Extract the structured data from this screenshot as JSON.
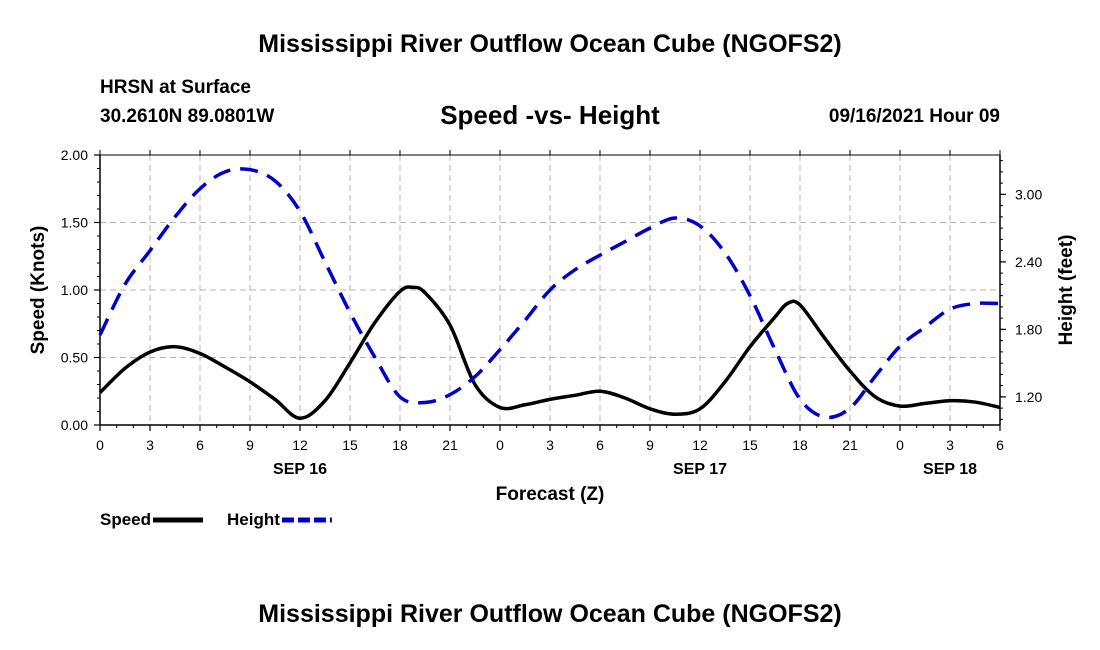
{
  "page": {
    "title_top": "Mississippi River Outflow Ocean Cube (NGOFS2)",
    "title_bottom": "Mississippi River Outflow Ocean Cube (NGOFS2)",
    "station_name": "HRSN at Surface",
    "station_coords": "30.2610N  89.0801W",
    "forecast_time": "09/16/2021 Hour 09"
  },
  "chart_data": {
    "type": "line",
    "title": "Speed -vs- Height",
    "xlabel": "Forecast (Z)",
    "ylabel": "Speed (Knots)",
    "y2label": "Height (feet)",
    "xlim": [
      0,
      54
    ],
    "ylim": [
      0,
      2
    ],
    "y2lim": [
      0.95,
      3.35
    ],
    "x_tick_values": [
      0,
      3,
      6,
      9,
      12,
      15,
      18,
      21,
      24,
      27,
      30,
      33,
      36,
      39,
      42,
      45,
      48,
      51,
      54
    ],
    "x_tick_labels": [
      "0",
      "3",
      "6",
      "9",
      "12",
      "15",
      "18",
      "21",
      "0",
      "3",
      "6",
      "9",
      "12",
      "15",
      "18",
      "21",
      "0",
      "3",
      "6"
    ],
    "date_labels": [
      {
        "x": 12,
        "label": "SEP 16"
      },
      {
        "x": 36,
        "label": "SEP 17"
      },
      {
        "x": 51,
        "label": "SEP 18"
      }
    ],
    "y_ticks": [
      0,
      0.5,
      1.0,
      1.5,
      2.0
    ],
    "y_tick_labels": [
      "0.00",
      "0.50",
      "1.00",
      "1.50",
      "2.00"
    ],
    "y2_ticks": [
      1.2,
      1.8,
      2.4,
      3.0
    ],
    "y2_tick_labels": [
      "1.20",
      "1.80",
      "2.40",
      "3.00"
    ],
    "grid": true,
    "legend": "bottom-left",
    "series": [
      {
        "name": "Speed",
        "axis": "left",
        "color": "#000000",
        "style": "solid",
        "x": [
          0,
          1.5,
          3,
          4.5,
          6,
          7.5,
          9,
          10.5,
          12,
          13.5,
          15,
          16.5,
          18,
          18.75,
          19.5,
          21,
          22.5,
          24,
          25.5,
          27,
          28.5,
          30,
          31.5,
          33,
          34.5,
          36,
          37.5,
          39,
          40.5,
          41.25,
          42,
          43.5,
          45,
          46.5,
          48,
          49.5,
          51,
          52.5,
          54
        ],
        "values": [
          0.24,
          0.42,
          0.54,
          0.58,
          0.53,
          0.43,
          0.32,
          0.19,
          0.05,
          0.18,
          0.46,
          0.76,
          0.99,
          1.02,
          0.98,
          0.74,
          0.3,
          0.13,
          0.15,
          0.19,
          0.22,
          0.25,
          0.2,
          0.12,
          0.08,
          0.12,
          0.32,
          0.58,
          0.8,
          0.9,
          0.89,
          0.64,
          0.4,
          0.21,
          0.14,
          0.16,
          0.18,
          0.17,
          0.13
        ]
      },
      {
        "name": "Height",
        "axis": "right",
        "color": "#0000cc",
        "style": "dashed",
        "x": [
          0,
          1.5,
          3,
          4.5,
          6,
          7.5,
          9,
          10.5,
          12,
          13.5,
          15,
          16.5,
          18,
          19.5,
          21,
          22.5,
          24,
          25.5,
          27,
          28.5,
          30,
          31.5,
          33,
          34.5,
          36,
          37.5,
          39,
          40.5,
          42,
          43.5,
          45,
          46.5,
          48,
          49.5,
          51,
          52.5,
          54
        ],
        "values": [
          1.75,
          2.2,
          2.5,
          2.8,
          3.05,
          3.2,
          3.22,
          3.12,
          2.85,
          2.4,
          1.95,
          1.55,
          1.2,
          1.15,
          1.22,
          1.38,
          1.62,
          1.88,
          2.15,
          2.33,
          2.46,
          2.58,
          2.7,
          2.79,
          2.72,
          2.48,
          2.1,
          1.62,
          1.18,
          1.02,
          1.1,
          1.38,
          1.65,
          1.82,
          1.98,
          2.03,
          2.03
        ]
      }
    ]
  }
}
